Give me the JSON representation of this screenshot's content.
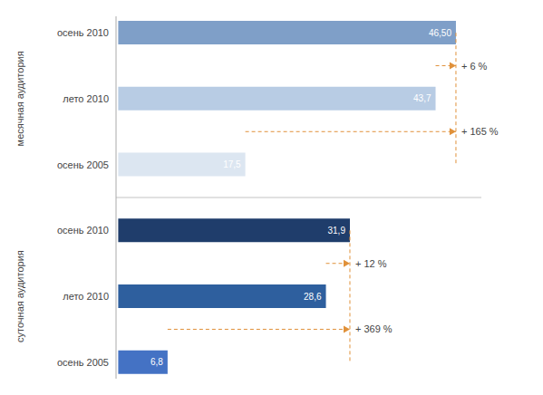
{
  "chart_data": {
    "type": "bar",
    "orientation": "horizontal",
    "categories": [
      "осень 2010",
      "лето 2010",
      "осень 2005",
      "осень 2010",
      "лето 2010",
      "осень 2005"
    ],
    "values": [
      46.5,
      43.7,
      17.5,
      31.9,
      28.6,
      6.8
    ],
    "value_labels": [
      "46,50",
      "43,7",
      "17,5",
      "31,9",
      "28,6",
      "6,8"
    ],
    "data_labels": true,
    "colors": [
      "#7f9fc8",
      "#b8cce4",
      "#dce6f1",
      "#1f3d6b",
      "#2e5f9e",
      "#4472c4"
    ],
    "xlim": [
      -0.3,
      50.0
    ],
    "tick_labels": false,
    "grid": false,
    "groups": [
      {
        "label": "месячная аудитория",
        "size": 3,
        "reference_line": 46.5
      },
      {
        "label": "суточная аудитория",
        "size": 3,
        "reference_line": 31.9
      }
    ],
    "annotations": [
      {
        "text": "+ 6 %",
        "from": 43.7,
        "to": 46.5,
        "color": "#e0913a"
      },
      {
        "text": "+ 165 %",
        "from": 17.5,
        "to": 46.5,
        "color": "#e0913a"
      },
      {
        "text": "+ 12 %",
        "from": 28.6,
        "to": 31.9,
        "color": "#e0913a"
      },
      {
        "text": "+ 369 %",
        "from": 6.8,
        "to": 31.9,
        "color": "#e0913a"
      }
    ]
  }
}
